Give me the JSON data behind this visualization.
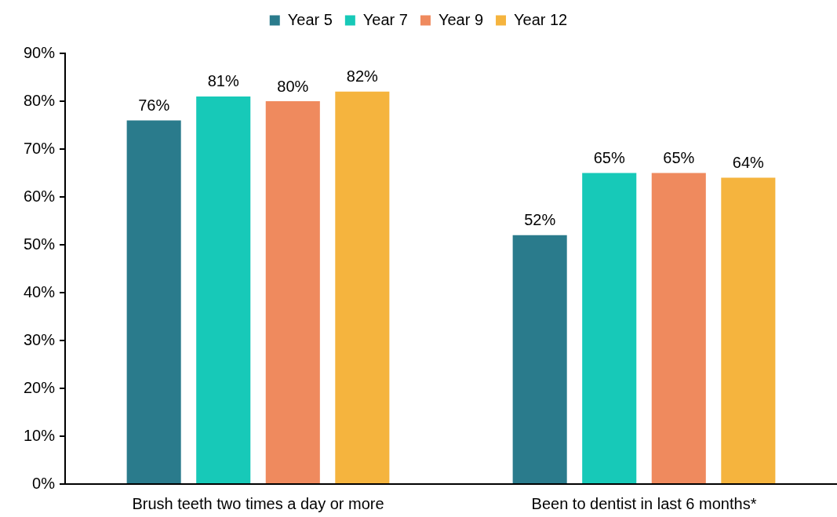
{
  "chart_data": {
    "type": "bar",
    "categories": [
      "Brush teeth two times a day or more",
      "Been to dentist in last 6 months*"
    ],
    "series": [
      {
        "name": "Year 5",
        "color": "#2a7b8c",
        "values": [
          76,
          52
        ],
        "value_labels": [
          "76%",
          "52%"
        ]
      },
      {
        "name": "Year 7",
        "color": "#17c9b8",
        "values": [
          81,
          65
        ],
        "value_labels": [
          "81%",
          "65%"
        ]
      },
      {
        "name": "Year 9",
        "color": "#ef8a5e",
        "values": [
          80,
          65
        ],
        "value_labels": [
          "80%",
          "65%"
        ]
      },
      {
        "name": "Year 12",
        "color": "#f5b43e",
        "values": [
          82,
          64
        ],
        "value_labels": [
          "82%",
          "64%"
        ]
      }
    ],
    "ylim": [
      0,
      90
    ],
    "yticks": [
      {
        "value": 0,
        "label": "0%"
      },
      {
        "value": 10,
        "label": "10%"
      },
      {
        "value": 20,
        "label": "20%"
      },
      {
        "value": 30,
        "label": "30%"
      },
      {
        "value": 40,
        "label": "40%"
      },
      {
        "value": 50,
        "label": "50%"
      },
      {
        "value": 60,
        "label": "60%"
      },
      {
        "value": 70,
        "label": "70%"
      },
      {
        "value": 80,
        "label": "80%"
      },
      {
        "value": 90,
        "label": "90%"
      }
    ],
    "grid": false,
    "legend": "top"
  }
}
